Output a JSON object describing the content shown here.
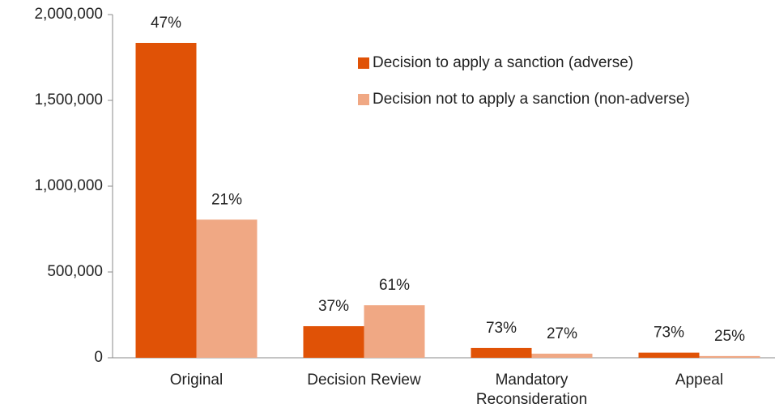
{
  "chart_data": {
    "type": "bar",
    "categories": [
      "Original",
      "Decision Review",
      "Mandatory Reconsideration",
      "Appeal"
    ],
    "series": [
      {
        "name": "Decision to apply a sanction (adverse)",
        "color": "#e05206",
        "values": [
          1835000,
          184000,
          57000,
          30000
        ],
        "labels": [
          "47%",
          "37%",
          "73%",
          "73%"
        ]
      },
      {
        "name": "Decision not to apply a sanction (non-adverse)",
        "color": "#f0a884",
        "values": [
          805000,
          306000,
          24000,
          10000
        ],
        "labels": [
          "21%",
          "61%",
          "27%",
          "25%"
        ]
      }
    ],
    "ylim": [
      0,
      2000000
    ],
    "yticks": [
      {
        "value": 0,
        "label": "0"
      },
      {
        "value": 500000,
        "label": "500,000"
      },
      {
        "value": 1000000,
        "label": "1,000,000"
      },
      {
        "value": 1500000,
        "label": "1,500,000"
      },
      {
        "value": 2000000,
        "label": "2,000,000"
      }
    ],
    "grid": false,
    "legend": "top-right"
  }
}
